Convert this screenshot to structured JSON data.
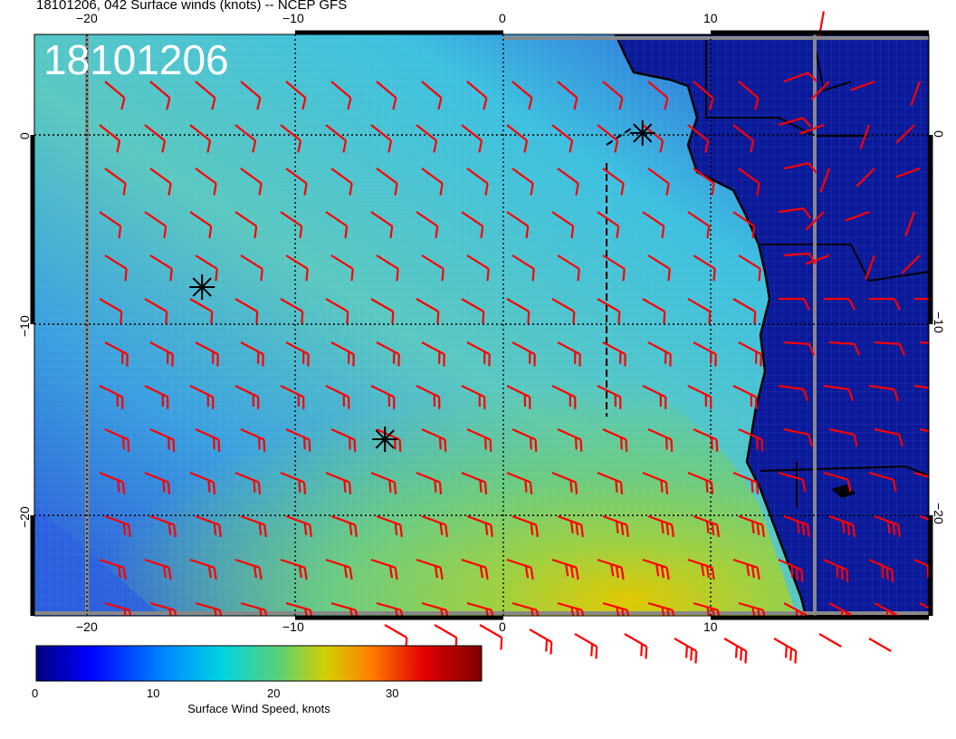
{
  "title": "18101206, 042 Surface winds (knots) -- NCEP GFS",
  "date_label": "18101206",
  "colorbar": {
    "label": "Surface Wind Speed, knots",
    "ticks": [
      "0",
      "10",
      "20",
      "30"
    ],
    "colors": [
      "#00007f",
      "#0000ff",
      "#0080ff",
      "#00c8e0",
      "#5ad08a",
      "#c8d200",
      "#ff8000",
      "#e00000",
      "#7f0000"
    ]
  },
  "lon_labels": [
    "−20",
    "−10",
    "0",
    "10"
  ],
  "lat_labels_left": [
    "0",
    "−10",
    "−20"
  ],
  "lat_labels_right": [
    "0",
    "−10",
    "−20"
  ],
  "colors": {
    "barbs": "#ff0000",
    "coast": "#000000",
    "grid": "#000000",
    "ocean_low": "#0a2ac8",
    "land": "#0a1a9a"
  },
  "markers": [
    {
      "name": "marker-1",
      "lon": -14.5,
      "lat": -8.0
    },
    {
      "name": "marker-2",
      "lon": -5.7,
      "lat": -16.0
    },
    {
      "name": "marker-3",
      "lon": 6.7,
      "lat": 0.1
    }
  ]
}
